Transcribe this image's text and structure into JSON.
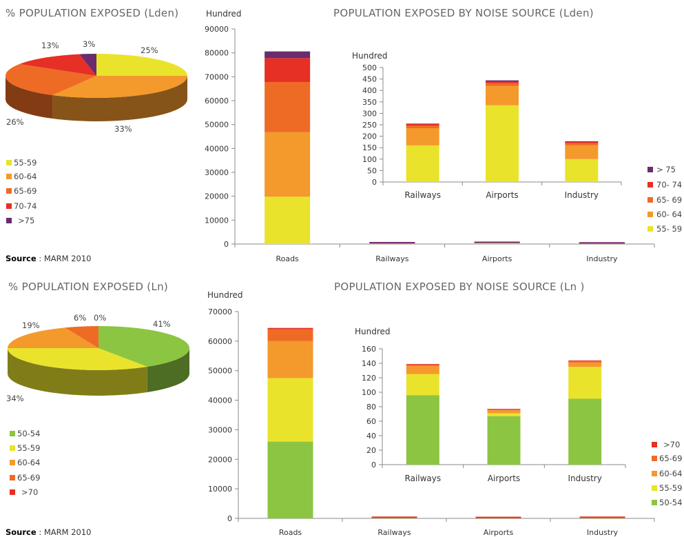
{
  "colors": {
    "55-59": "#e9e32c",
    "60-64": "#f4992c",
    "65-69": "#ee6b25",
    "70-74": "#e62f25",
    "75": "#6a2c6f",
    "50-54": "#8cc541",
    "axis": "#888888"
  },
  "source": {
    "label": "Source",
    "text": " : MARM 2010"
  },
  "pie_lden": {
    "title": "% POPULATION EXPOSED (Lden)",
    "slice_labels": [
      "25%",
      "33%",
      "26%",
      "13%",
      "3%"
    ],
    "legend": [
      "55-59",
      "60-64",
      "65-69",
      "70-74",
      ">75"
    ]
  },
  "pie_ln": {
    "title": "% POPULATION EXPOSED (Ln)",
    "slice_labels": [
      "41%",
      "34%",
      "19%",
      "6%",
      "0%"
    ],
    "legend": [
      "50-54",
      "55-59",
      "60-64",
      "65-69",
      ">70"
    ]
  },
  "bar_lden": {
    "title": "POPULATION EXPOSED BY NOISE SOURCE (Lden)",
    "unit": "Hundred",
    "legend": [
      "> 75",
      "70- 74",
      "65- 69",
      "60- 64",
      "55- 59"
    ]
  },
  "bar_ln": {
    "title": "POPULATION EXPOSED BY NOISE SOURCE (Ln )",
    "unit": "Hundred",
    "legend": [
      ">70",
      "65-69",
      "60-64",
      "55-59",
      "50-54"
    ]
  },
  "chart_data": [
    {
      "type": "pie",
      "title": "% POPULATION EXPOSED (Lden)",
      "categories": [
        "55-59",
        "60-64",
        "65-69",
        "70-74",
        ">75"
      ],
      "values": [
        25,
        33,
        26,
        13,
        3
      ],
      "colors": [
        "#e9e32c",
        "#f4992c",
        "#ee6b25",
        "#e62f25",
        "#6a2c6f"
      ]
    },
    {
      "type": "bar",
      "stacked": true,
      "title": "POPULATION EXPOSED BY NOISE SOURCE (Lden)",
      "ylabel": "Hundred",
      "ylim": [
        0,
        90000
      ],
      "yticks": [
        0,
        10000,
        20000,
        30000,
        40000,
        50000,
        60000,
        70000,
        80000,
        90000
      ],
      "categories": [
        "Roads",
        "Railways",
        "Airports",
        "Industry"
      ],
      "series": [
        {
          "name": "55- 59",
          "color": "#e9e32c",
          "values": [
            19800,
            160,
            335,
            100
          ]
        },
        {
          "name": "60- 64",
          "color": "#f4992c",
          "values": [
            27000,
            75,
            85,
            60
          ]
        },
        {
          "name": "65- 69",
          "color": "#ee6b25",
          "values": [
            21000,
            12,
            12,
            10
          ]
        },
        {
          "name": "70- 74",
          "color": "#e62f25",
          "values": [
            10000,
            6,
            6,
            5
          ]
        },
        {
          "name": "> 75",
          "color": "#6a2c6f",
          "values": [
            2800,
            2,
            6,
            3
          ]
        }
      ]
    },
    {
      "type": "bar",
      "stacked": true,
      "title": "",
      "ylabel": "Hundred",
      "ylim": [
        0,
        500
      ],
      "yticks": [
        0,
        50,
        100,
        150,
        200,
        250,
        300,
        350,
        400,
        450,
        500
      ],
      "categories": [
        "Railways",
        "Airports",
        "Industry"
      ],
      "series": [
        {
          "name": "55- 59",
          "color": "#e9e32c",
          "values": [
            160,
            335,
            100
          ]
        },
        {
          "name": "60- 64",
          "color": "#f4992c",
          "values": [
            75,
            85,
            60
          ]
        },
        {
          "name": "65- 69",
          "color": "#ee6b25",
          "values": [
            12,
            12,
            10
          ]
        },
        {
          "name": "70- 74",
          "color": "#e62f25",
          "values": [
            6,
            6,
            5
          ]
        },
        {
          "name": "> 75",
          "color": "#6a2c6f",
          "values": [
            2,
            6,
            3
          ]
        }
      ]
    },
    {
      "type": "pie",
      "title": "% POPULATION EXPOSED (Ln)",
      "categories": [
        "50-54",
        "55-59",
        "60-64",
        "65-69",
        ">70"
      ],
      "values": [
        41,
        34,
        19,
        6,
        0
      ],
      "colors": [
        "#8cc541",
        "#e9e32c",
        "#f4992c",
        "#ee6b25",
        "#e62f25"
      ]
    },
    {
      "type": "bar",
      "stacked": true,
      "title": "POPULATION EXPOSED BY NOISE SOURCE (Ln )",
      "ylabel": "Hundred",
      "ylim": [
        0,
        70000
      ],
      "yticks": [
        0,
        10000,
        20000,
        30000,
        40000,
        50000,
        60000,
        70000
      ],
      "categories": [
        "Roads",
        "Railways",
        "Airports",
        "Industry"
      ],
      "series": [
        {
          "name": "50-54",
          "color": "#8cc541",
          "values": [
            26000,
            96,
            67,
            91
          ]
        },
        {
          "name": "55-59",
          "color": "#e9e32c",
          "values": [
            21500,
            29,
            4,
            44
          ]
        },
        {
          "name": "60-64",
          "color": "#f4992c",
          "values": [
            12500,
            11,
            4,
            6
          ]
        },
        {
          "name": "65-69",
          "color": "#ee6b25",
          "values": [
            4000,
            2,
            1,
            2
          ]
        },
        {
          "name": ">70",
          "color": "#e62f25",
          "values": [
            100,
            1,
            1,
            1
          ]
        }
      ]
    },
    {
      "type": "bar",
      "stacked": true,
      "title": "",
      "ylabel": "Hundred",
      "ylim": [
        0,
        160
      ],
      "yticks": [
        0,
        20,
        40,
        60,
        80,
        100,
        120,
        140,
        160
      ],
      "categories": [
        "Railways",
        "Airports",
        "Industry"
      ],
      "series": [
        {
          "name": "50-54",
          "color": "#8cc541",
          "values": [
            96,
            67,
            91
          ]
        },
        {
          "name": "55-59",
          "color": "#e9e32c",
          "values": [
            29,
            4,
            44
          ]
        },
        {
          "name": "60-64",
          "color": "#f4992c",
          "values": [
            11,
            4,
            6
          ]
        },
        {
          "name": "65-69",
          "color": "#ee6b25",
          "values": [
            2,
            1,
            2
          ]
        },
        {
          "name": ">70",
          "color": "#e62f25",
          "values": [
            1,
            1,
            1
          ]
        }
      ]
    }
  ]
}
